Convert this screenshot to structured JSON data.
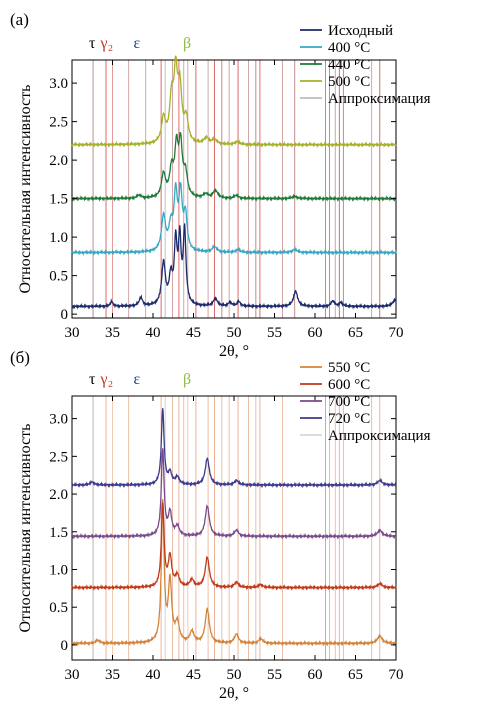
{
  "chart_data": [
    {
      "type": "line",
      "panel_label": "(а)",
      "xlabel": "2θ, °",
      "ylabel": "Относительная интенсивность",
      "xlim": [
        30,
        70
      ],
      "ylim": [
        -0.05,
        3.3
      ],
      "xticks": [
        30,
        35,
        40,
        45,
        50,
        55,
        60,
        65,
        70
      ],
      "yticks": [
        0,
        0.5,
        1.0,
        1.5,
        2.0,
        2.5,
        3.0
      ],
      "ytick_labels": [
        "0",
        "0.5",
        "1.0",
        "1.5",
        "2.0",
        "2.5",
        "3.0"
      ],
      "phase_labels": [
        {
          "text": "τ",
          "x": 32.5,
          "color": "#000000"
        },
        {
          "text": "γ₂",
          "x": 34.3,
          "color": "#c0392b"
        },
        {
          "text": "ε",
          "x": 38.0,
          "color": "#1f3a93"
        },
        {
          "text": "β",
          "x": 44.2,
          "color": "#8cbf3f"
        }
      ],
      "legend_position": "top-right",
      "ref_lines": [
        {
          "x": 32.6,
          "color": "#b07070"
        },
        {
          "x": 34.2,
          "color": "#d64545"
        },
        {
          "x": 35.0,
          "color": "#e08080"
        },
        {
          "x": 37.0,
          "color": "#c89090"
        },
        {
          "x": 39.1,
          "color": "#c89090"
        },
        {
          "x": 41.0,
          "color": "#d64545"
        },
        {
          "x": 41.5,
          "color": "#b0b0b0"
        },
        {
          "x": 42.4,
          "color": "#c89090"
        },
        {
          "x": 43.2,
          "color": "#d64545"
        },
        {
          "x": 43.8,
          "color": "#c89090"
        },
        {
          "x": 44.3,
          "color": "#c89090"
        },
        {
          "x": 45.3,
          "color": "#d64545"
        },
        {
          "x": 46.8,
          "color": "#c89090"
        },
        {
          "x": 47.6,
          "color": "#d64545"
        },
        {
          "x": 48.5,
          "color": "#b07070"
        },
        {
          "x": 49.4,
          "color": "#c89090"
        },
        {
          "x": 50.5,
          "color": "#d64545"
        },
        {
          "x": 51.8,
          "color": "#c89090"
        },
        {
          "x": 52.7,
          "color": "#b07070"
        },
        {
          "x": 53.2,
          "color": "#d64545"
        },
        {
          "x": 56.0,
          "color": "#c89090"
        },
        {
          "x": 57.5,
          "color": "#b07070"
        },
        {
          "x": 61.3,
          "color": "#808080"
        },
        {
          "x": 61.8,
          "color": "#b07070"
        },
        {
          "x": 62.5,
          "color": "#c89090"
        },
        {
          "x": 63.0,
          "color": "#d64545"
        },
        {
          "x": 63.5,
          "color": "#b07070"
        },
        {
          "x": 67.0,
          "color": "#c89090"
        },
        {
          "x": 68.0,
          "color": "#d64545"
        }
      ],
      "series": [
        {
          "name": "Исходный",
          "color": "#1b2a6b",
          "offset": 0.1,
          "peaks": [
            [
              34.9,
              0.06,
              0.2
            ],
            [
              38.5,
              0.11,
              0.25
            ],
            [
              41.3,
              0.55,
              0.28
            ],
            [
              42.2,
              0.35,
              0.25
            ],
            [
              42.8,
              0.78,
              0.2
            ],
            [
              43.3,
              0.82,
              0.2
            ],
            [
              43.9,
              0.95,
              0.2
            ],
            [
              47.7,
              0.1,
              0.3
            ],
            [
              49.5,
              0.05,
              0.25
            ],
            [
              50.6,
              0.06,
              0.25
            ],
            [
              57.6,
              0.2,
              0.3
            ],
            [
              62.2,
              0.07,
              0.25
            ],
            [
              63.2,
              0.05,
              0.25
            ],
            [
              69.9,
              0.09,
              0.35
            ]
          ]
        },
        {
          "name": "400 °C",
          "color": "#35a7c3",
          "offset": 0.8,
          "peaks": [
            [
              41.3,
              0.45,
              0.3
            ],
            [
              42.2,
              0.3,
              0.3
            ],
            [
              42.8,
              0.7,
              0.25
            ],
            [
              43.4,
              0.72,
              0.25
            ],
            [
              44.0,
              0.45,
              0.25
            ],
            [
              47.6,
              0.07,
              0.35
            ],
            [
              50.5,
              0.04,
              0.3
            ],
            [
              57.5,
              0.04,
              0.35
            ]
          ]
        },
        {
          "name": "440 °C",
          "color": "#1f7a3a",
          "offset": 1.5,
          "peaks": [
            [
              38.3,
              0.04,
              0.3
            ],
            [
              41.3,
              0.3,
              0.3
            ],
            [
              42.3,
              0.35,
              0.3
            ],
            [
              42.9,
              0.6,
              0.25
            ],
            [
              43.4,
              0.65,
              0.25
            ],
            [
              44.0,
              0.3,
              0.3
            ],
            [
              46.5,
              0.05,
              0.35
            ],
            [
              47.7,
              0.1,
              0.35
            ],
            [
              50.3,
              0.04,
              0.3
            ],
            [
              57.5,
              0.03,
              0.35
            ]
          ]
        },
        {
          "name": "500 °C",
          "color": "#a6b02b",
          "offset": 2.2,
          "peaks": [
            [
              41.3,
              0.32,
              0.3
            ],
            [
              42.3,
              0.55,
              0.3
            ],
            [
              42.8,
              0.8,
              0.25
            ],
            [
              43.3,
              0.7,
              0.3
            ],
            [
              44.1,
              0.3,
              0.3
            ],
            [
              46.6,
              0.08,
              0.35
            ],
            [
              47.6,
              0.06,
              0.35
            ],
            [
              50.4,
              0.04,
              0.3
            ]
          ]
        },
        {
          "name": "Аппроксимация",
          "color": "#8a8a8a",
          "offset": 2.2,
          "peaks": [
            [
              41.3,
              0.32,
              0.3
            ],
            [
              42.3,
              0.55,
              0.3
            ],
            [
              42.8,
              0.8,
              0.25
            ],
            [
              43.3,
              0.7,
              0.3
            ],
            [
              44.1,
              0.3,
              0.3
            ],
            [
              46.6,
              0.08,
              0.35
            ],
            [
              47.6,
              0.06,
              0.35
            ],
            [
              50.4,
              0.04,
              0.3
            ]
          ]
        }
      ]
    },
    {
      "type": "line",
      "panel_label": "(б)",
      "xlabel": "2θ, °",
      "ylabel": "Относительная интенсивность",
      "xlim": [
        30,
        70
      ],
      "ylim": [
        -0.2,
        3.3
      ],
      "xticks": [
        30,
        35,
        40,
        45,
        50,
        55,
        60,
        65,
        70
      ],
      "yticks": [
        0,
        0.5,
        1.0,
        1.5,
        2.0,
        2.5,
        3.0
      ],
      "ytick_labels": [
        "0",
        "0.5",
        "1.0",
        "1.5",
        "2.0",
        "2.5",
        "3.0"
      ],
      "phase_labels": [
        {
          "text": "τ",
          "x": 32.5,
          "color": "#000000"
        },
        {
          "text": "γ₂",
          "x": 34.3,
          "color": "#c0392b"
        },
        {
          "text": "ε",
          "x": 38.0,
          "color": "#1f3a93"
        },
        {
          "text": "β",
          "x": 44.2,
          "color": "#8cbf3f"
        }
      ],
      "legend_position": "top-right",
      "ref_lines": [
        {
          "x": 32.6,
          "color": "#b8a090"
        },
        {
          "x": 34.2,
          "color": "#e8a080"
        },
        {
          "x": 35.0,
          "color": "#f0c0a0"
        },
        {
          "x": 37.0,
          "color": "#e8b090"
        },
        {
          "x": 41.0,
          "color": "#e8a080"
        },
        {
          "x": 41.5,
          "color": "#c8c8c8"
        },
        {
          "x": 42.4,
          "color": "#e8b090"
        },
        {
          "x": 43.2,
          "color": "#e8a080"
        },
        {
          "x": 43.8,
          "color": "#e8b090"
        },
        {
          "x": 44.3,
          "color": "#f0c0a0"
        },
        {
          "x": 45.3,
          "color": "#e8a080"
        },
        {
          "x": 46.8,
          "color": "#e8b090"
        },
        {
          "x": 47.6,
          "color": "#e8a080"
        },
        {
          "x": 48.5,
          "color": "#d8b0a0"
        },
        {
          "x": 49.4,
          "color": "#e8b090"
        },
        {
          "x": 50.5,
          "color": "#e8a080"
        },
        {
          "x": 51.8,
          "color": "#e8b090"
        },
        {
          "x": 52.7,
          "color": "#d8b0a0"
        },
        {
          "x": 53.2,
          "color": "#e8a080"
        },
        {
          "x": 56.0,
          "color": "#e8b090"
        },
        {
          "x": 61.3,
          "color": "#a0a0a0"
        },
        {
          "x": 61.8,
          "color": "#b8b8b8"
        },
        {
          "x": 62.5,
          "color": "#e8b090"
        },
        {
          "x": 63.0,
          "color": "#e8a080"
        },
        {
          "x": 63.5,
          "color": "#d8b0a0"
        },
        {
          "x": 67.0,
          "color": "#e8b090"
        },
        {
          "x": 68.0,
          "color": "#e8a080"
        }
      ],
      "series": [
        {
          "name": "550 °C",
          "color": "#d4843a",
          "offset": 0.02,
          "peaks": [
            [
              33.2,
              0.04,
              0.3
            ],
            [
              41.2,
              1.85,
              0.2
            ],
            [
              42.1,
              0.8,
              0.25
            ],
            [
              43.0,
              0.25,
              0.3
            ],
            [
              44.8,
              0.15,
              0.3
            ],
            [
              46.7,
              0.45,
              0.3
            ],
            [
              50.3,
              0.12,
              0.3
            ],
            [
              53.3,
              0.06,
              0.3
            ],
            [
              68.0,
              0.1,
              0.35
            ]
          ]
        },
        {
          "name": "600 °C",
          "color": "#c03a1a",
          "offset": 0.76,
          "peaks": [
            [
              41.2,
              1.1,
              0.2
            ],
            [
              42.1,
              0.4,
              0.25
            ],
            [
              43.0,
              0.15,
              0.3
            ],
            [
              44.8,
              0.1,
              0.3
            ],
            [
              46.7,
              0.4,
              0.3
            ],
            [
              50.3,
              0.07,
              0.3
            ],
            [
              53.3,
              0.04,
              0.3
            ],
            [
              68.0,
              0.05,
              0.35
            ]
          ]
        },
        {
          "name": "700 °C",
          "color": "#7a4a8a",
          "offset": 1.44,
          "peaks": [
            [
              41.2,
              1.15,
              0.2
            ],
            [
              42.1,
              0.3,
              0.25
            ],
            [
              43.0,
              0.12,
              0.3
            ],
            [
              46.7,
              0.4,
              0.3
            ],
            [
              50.3,
              0.08,
              0.3
            ],
            [
              68.0,
              0.08,
              0.35
            ]
          ]
        },
        {
          "name": "720 °C",
          "color": "#3d3a8c",
          "offset": 2.12,
          "peaks": [
            [
              32.5,
              0.04,
              0.3
            ],
            [
              41.2,
              1.0,
              0.2
            ],
            [
              42.1,
              0.15,
              0.25
            ],
            [
              43.0,
              0.1,
              0.3
            ],
            [
              46.7,
              0.35,
              0.3
            ],
            [
              50.3,
              0.06,
              0.3
            ],
            [
              68.0,
              0.06,
              0.35
            ]
          ]
        },
        {
          "name": "Аппроксимация",
          "color": "#b8b8b8",
          "offset": 2.12,
          "peaks": [
            [
              32.5,
              0.04,
              0.3
            ],
            [
              41.2,
              1.0,
              0.2
            ],
            [
              42.1,
              0.15,
              0.25
            ],
            [
              43.0,
              0.1,
              0.3
            ],
            [
              46.7,
              0.35,
              0.3
            ],
            [
              50.3,
              0.06,
              0.3
            ],
            [
              68.0,
              0.06,
              0.35
            ]
          ]
        }
      ]
    }
  ]
}
